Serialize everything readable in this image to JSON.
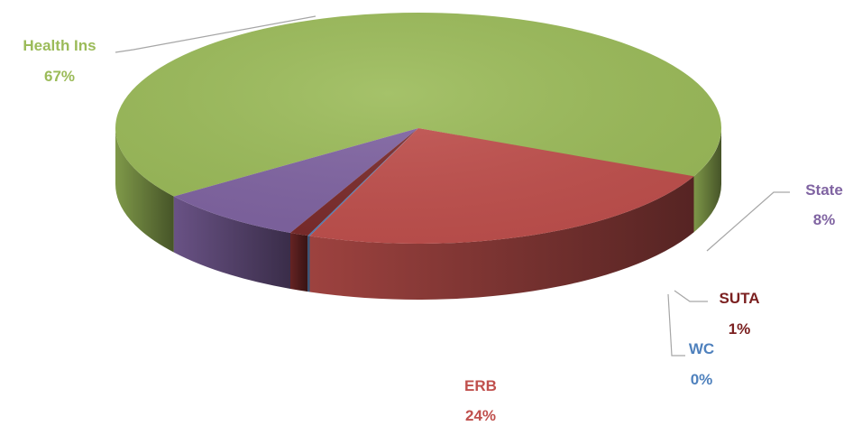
{
  "chart_data": {
    "type": "pie",
    "style": "3d",
    "categories": [
      "Health Ins",
      "State",
      "SUTA",
      "WC",
      "ERB"
    ],
    "values": [
      67,
      8,
      1,
      0,
      24
    ],
    "percent_labels": [
      "67%",
      "8%",
      "1%",
      "0%",
      "24%"
    ],
    "colors": [
      "#9bbb59",
      "#8064a2",
      "#7b2b2b",
      "#4f81bd",
      "#c0504d"
    ],
    "label_colors": [
      "#9bbb59",
      "#8064a2",
      "#7b2020",
      "#4f81bd",
      "#c0504d"
    ],
    "legend": "none",
    "data_labels": "outside with leader lines"
  }
}
